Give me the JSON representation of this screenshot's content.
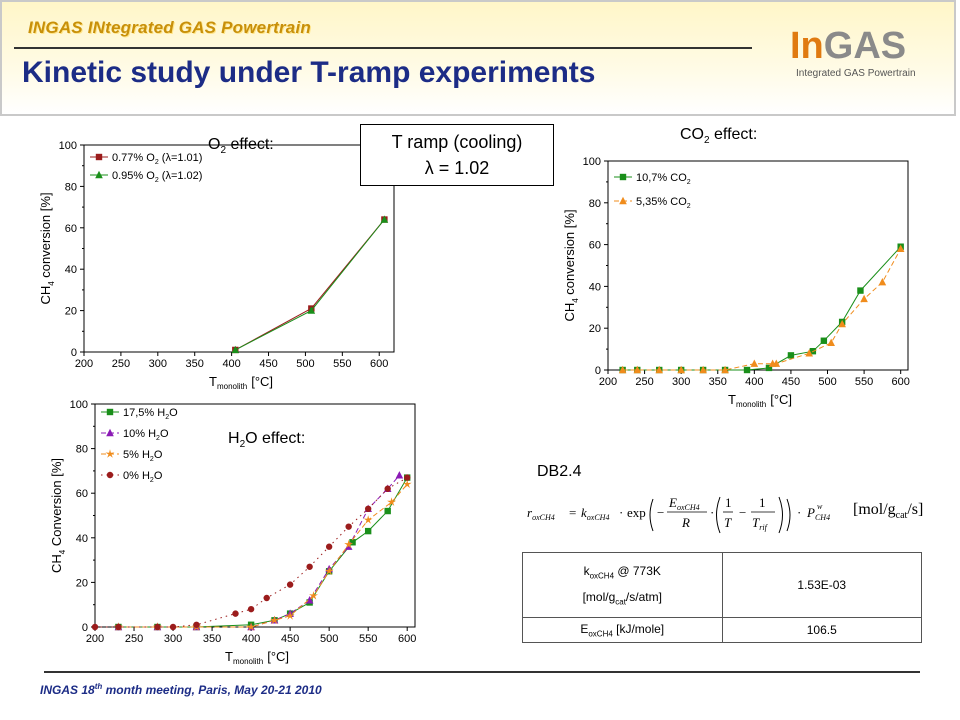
{
  "header": {
    "project_name": "INGAS INtegrated GAS Powertrain",
    "title": "Kinetic study under T-ramp experiments",
    "logo_in": "In",
    "logo_gas": "GAS",
    "logo_sub": "Integrated GAS Powertrain"
  },
  "ramp_box": {
    "line1": "T ramp (cooling)",
    "line2": "λ = 1.02"
  },
  "labels": {
    "o2_effect_main": "O",
    "o2_effect_sub": "2",
    "o2_effect_rest": " effect:",
    "co2_effect_main": "CO",
    "co2_effect_sub": "2",
    "co2_effect_rest": " effect:",
    "h2o_effect_main": "H",
    "h2o_effect_sub": "2",
    "h2o_effect_rest": "O effect:",
    "db": "DB2.4"
  },
  "equation": {
    "lhs": "r",
    "lhs_sub": "oxCH4",
    "k": "k",
    "k_sub": "oxCH4",
    "exp": "exp",
    "E": "E",
    "E_sub": "oxCH4",
    "R": "R",
    "one": "1",
    "T": "T",
    "Trif": "T",
    "Trif_sub": "rif",
    "P": "P",
    "P_sub": "CH4",
    "P_sup": "w",
    "unit_main": "[mol/g",
    "unit_sub": "cat",
    "unit_rest": "/s]"
  },
  "table": {
    "r1_label_main": "k",
    "r1_label_sub": "oxCH4",
    "r1_label_rest": " @ 773K",
    "r1_unit_main": "[mol/g",
    "r1_unit_sub": "cat",
    "r1_unit_rest": "/s/atm]",
    "r1_value": "1.53E-03",
    "r2_label_main": "E",
    "r2_label_sub": "oxCH4",
    "r2_label_rest": " [kJ/mole]",
    "r2_value": "106.5"
  },
  "footer": {
    "main": "INGAS 18",
    "sup": "th",
    "rest": " month meeting, Paris, May 20-21 2010"
  },
  "chart_data": [
    {
      "id": "o2",
      "type": "line",
      "xlabel": "T",
      "xlabel_sub": "monolith",
      "xlabel_unit": "[°C]",
      "ylabel": "CH",
      "ylabel_sub": "4",
      "ylabel_rest": " conversion [%]",
      "xlim": [
        200,
        620
      ],
      "ylim": [
        0,
        100
      ],
      "xticks": [
        200,
        250,
        300,
        350,
        400,
        450,
        500,
        550,
        600
      ],
      "yticks": [
        0,
        20,
        40,
        60,
        80,
        100
      ],
      "series": [
        {
          "name": "0.77% O",
          "name_sub": "2",
          "name_rest": " (λ=1.01)",
          "color": "#9b1c1c",
          "marker": "square",
          "dash": "solid",
          "x": [
            405,
            508,
            607
          ],
          "y": [
            1,
            21,
            64
          ]
        },
        {
          "name": "0.95% O",
          "name_sub": "2",
          "name_rest": " (λ=1.02)",
          "color": "#1a8f1a",
          "marker": "triangle",
          "dash": "solid",
          "x": [
            405,
            508,
            607
          ],
          "y": [
            1,
            20,
            64
          ]
        }
      ]
    },
    {
      "id": "co2",
      "type": "line",
      "xlabel": "T",
      "xlabel_sub": "monolith",
      "xlabel_unit": "[°C]",
      "ylabel": "CH",
      "ylabel_sub": "4",
      "ylabel_rest": " conversion [%]",
      "xlim": [
        200,
        610
      ],
      "ylim": [
        0,
        100
      ],
      "xticks": [
        200,
        250,
        300,
        350,
        400,
        450,
        500,
        550,
        600
      ],
      "yticks": [
        0,
        20,
        40,
        60,
        80,
        100
      ],
      "series": [
        {
          "name": "10,7% CO",
          "name_sub": "2",
          "name_rest": "",
          "color": "#1a8f1a",
          "marker": "square",
          "dash": "solid",
          "x": [
            220,
            240,
            270,
            300,
            330,
            360,
            390,
            420,
            450,
            480,
            495,
            520,
            545,
            600
          ],
          "y": [
            0,
            0,
            0,
            0,
            0,
            0,
            0,
            1,
            7,
            9,
            14,
            23,
            38,
            59
          ]
        },
        {
          "name": "5,35% CO",
          "name_sub": "2",
          "name_rest": "",
          "color": "#f08c1c",
          "marker": "triangle",
          "dash": "dashed",
          "x": [
            220,
            240,
            270,
            300,
            330,
            360,
            400,
            425,
            430,
            475,
            505,
            520,
            550,
            575,
            600
          ],
          "y": [
            0,
            0,
            0,
            0,
            0,
            0,
            3,
            3,
            3,
            8,
            13,
            22,
            34,
            42,
            58
          ]
        }
      ]
    },
    {
      "id": "h2o",
      "type": "line",
      "xlabel": "T",
      "xlabel_sub": "monolith",
      "xlabel_unit": "[°C]",
      "ylabel": "CH",
      "ylabel_sub": "4",
      "ylabel_rest": " Conversion [%]",
      "xlim": [
        200,
        610
      ],
      "ylim": [
        0,
        100
      ],
      "xticks": [
        200,
        250,
        300,
        350,
        400,
        450,
        500,
        550,
        600
      ],
      "yticks": [
        0,
        20,
        40,
        60,
        80,
        100
      ],
      "series": [
        {
          "name": "17,5% H",
          "name_sub": "2",
          "name_rest": "O",
          "color": "#1a8f1a",
          "marker": "square",
          "dash": "solid",
          "x": [
            230,
            280,
            330,
            400,
            430,
            450,
            475,
            500,
            530,
            550,
            575,
            600
          ],
          "y": [
            0,
            0,
            0,
            1,
            3,
            6,
            11,
            25,
            38,
            43,
            52,
            67
          ]
        },
        {
          "name": "10% H",
          "name_sub": "2",
          "name_rest": "O",
          "color": "#8b1ab5",
          "marker": "triangle",
          "dash": "dashed",
          "x": [
            230,
            280,
            330,
            400,
            430,
            450,
            475,
            500,
            525,
            550,
            575,
            590
          ],
          "y": [
            0,
            0,
            0,
            0,
            3,
            6,
            12,
            26,
            36,
            53,
            62,
            68
          ]
        },
        {
          "name": "5% H",
          "name_sub": "2",
          "name_rest": "O",
          "color": "#f08c1c",
          "marker": "star",
          "dash": "dashed",
          "x": [
            230,
            280,
            330,
            400,
            430,
            450,
            480,
            500,
            525,
            550,
            580,
            600
          ],
          "y": [
            0,
            0,
            0,
            0,
            3,
            5,
            14,
            25,
            37,
            48,
            56,
            64
          ]
        },
        {
          "name": "0% H",
          "name_sub": "2",
          "name_rest": "O",
          "color": "#9b1c1c",
          "marker": "circle",
          "dash": "dotted",
          "x": [
            200,
            230,
            280,
            300,
            330,
            380,
            400,
            420,
            450,
            475,
            500,
            525,
            550,
            575,
            600
          ],
          "y": [
            0,
            0,
            0,
            0,
            1,
            6,
            8,
            13,
            19,
            27,
            36,
            45,
            53,
            62,
            67
          ]
        }
      ]
    }
  ]
}
